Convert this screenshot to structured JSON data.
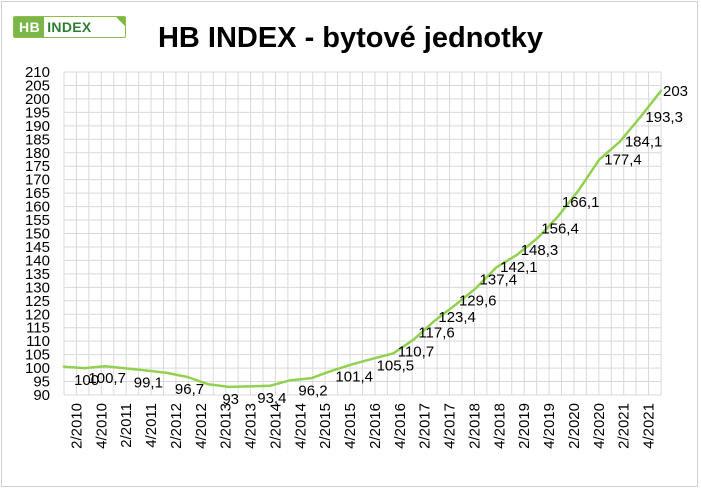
{
  "logo": {
    "hb": "HB",
    "index": "INDEX"
  },
  "colors": {
    "line": "#92d050",
    "grid": "#d9d9d9",
    "logo_green": "#7ab648"
  },
  "chart_data": {
    "type": "line",
    "title": "HB INDEX - bytové jednotky",
    "xlabel": "",
    "ylabel": "",
    "ylim": [
      90,
      210
    ],
    "ytick_step": 5,
    "grid": true,
    "x_tick_labels": [
      "2/2010",
      "4/2010",
      "2/2011",
      "4/2011",
      "2/2012",
      "4/2012",
      "2/2013",
      "4/2013",
      "2/2014",
      "4/2014",
      "2/2015",
      "4/2015",
      "2/2016",
      "4/2016",
      "2/2017",
      "4/2017",
      "2/2018",
      "4/2018",
      "2/2019",
      "4/2019",
      "2/2020",
      "4/2020",
      "2/2021",
      "4/2021"
    ],
    "series": [
      {
        "values": [
          100.5,
          100,
          100.7,
          99.9,
          99.1,
          98.2,
          96.7,
          94,
          93,
          93.2,
          93.4,
          95.5,
          96.2,
          99,
          101.4,
          103.5,
          105.5,
          110.7,
          117.6,
          123.4,
          129.6,
          137.4,
          142.1,
          148.3,
          156.4,
          166.1,
          177.4,
          184.1,
          193.3,
          203
        ]
      }
    ],
    "data_labels": [
      {
        "i": 1,
        "text": "100"
      },
      {
        "i": 2,
        "text": "100,7"
      },
      {
        "i": 4,
        "text": "99,1"
      },
      {
        "i": 6,
        "text": "96,7"
      },
      {
        "i": 8,
        "text": "93"
      },
      {
        "i": 10,
        "text": "93,4"
      },
      {
        "i": 12,
        "text": "96,2"
      },
      {
        "i": 14,
        "text": "101,4"
      },
      {
        "i": 16,
        "text": "105,5"
      },
      {
        "i": 17,
        "text": "110,7"
      },
      {
        "i": 18,
        "text": "117,6"
      },
      {
        "i": 19,
        "text": "123,4"
      },
      {
        "i": 20,
        "text": "129,6"
      },
      {
        "i": 21,
        "text": "137,4"
      },
      {
        "i": 22,
        "text": "142,1"
      },
      {
        "i": 23,
        "text": "148,3"
      },
      {
        "i": 24,
        "text": "156,4"
      },
      {
        "i": 25,
        "text": "166,1"
      },
      {
        "i": 26,
        "text": "177,4"
      },
      {
        "i": 27,
        "text": "184,1"
      },
      {
        "i": 28,
        "text": "193,3"
      },
      {
        "i": 29,
        "text": "203"
      }
    ]
  }
}
